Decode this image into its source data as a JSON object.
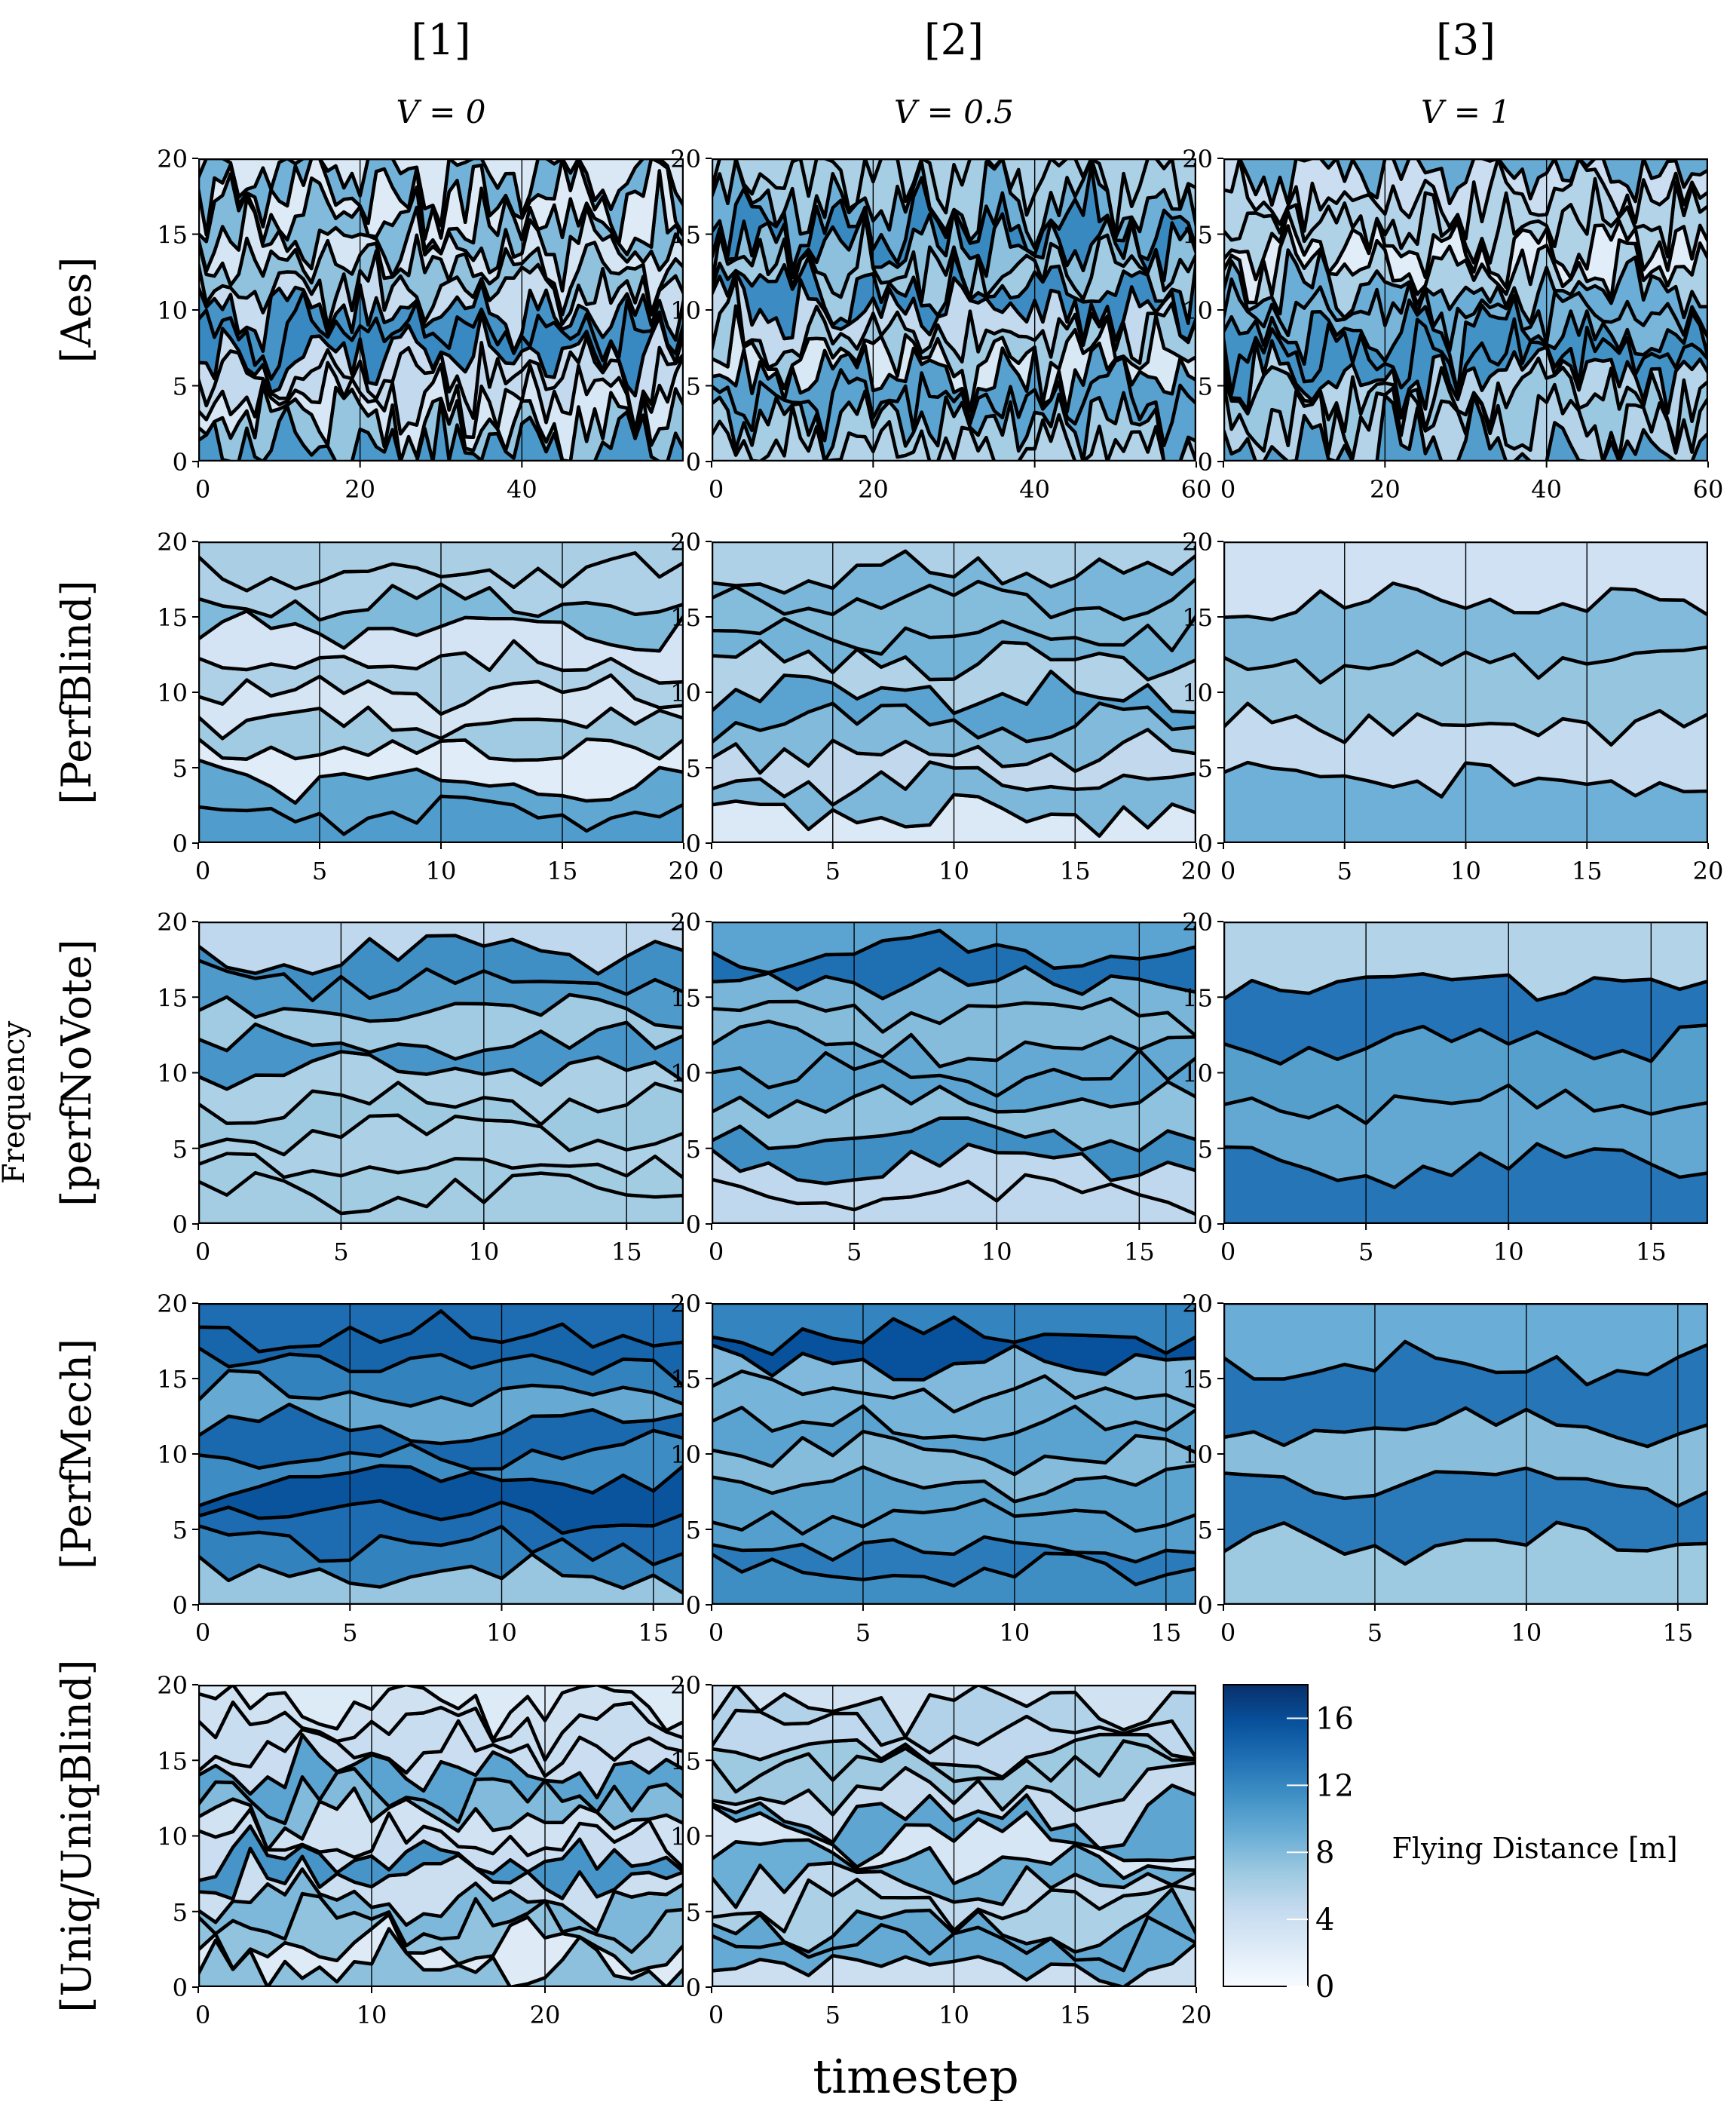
{
  "figure": {
    "column_headers": [
      "[1]",
      "[2]",
      "[3]"
    ],
    "column_subheaders": [
      "V = 0",
      "V = 0.5",
      "V = 1"
    ],
    "row_labels": [
      "[Aes]",
      "[PerfBlind]",
      "[perfNoVote]",
      "[PerfMech]",
      "[Uniq/UniqBlind]"
    ],
    "ylabel": "Frequency",
    "xlabel": "timestep"
  },
  "colorbar": {
    "label": "Flying Distance [m]",
    "ticks": [
      "16",
      "12",
      "8",
      "4",
      "0"
    ],
    "min": 0,
    "max": 18,
    "colors": [
      "#f7fbff",
      "#deebf7",
      "#c6dbef",
      "#9ecae1",
      "#6baed6",
      "#4292c6",
      "#2171b5",
      "#08519c",
      "#08306b"
    ]
  },
  "chart_data": [
    {
      "type": "area",
      "row": "[Aes]",
      "column": "[1]",
      "xlim": [
        0,
        60
      ],
      "ylim": [
        0,
        20
      ],
      "x_ticks": [
        "0",
        "20",
        "40"
      ],
      "y_ticks": [
        "0",
        "5",
        "10",
        "15",
        "20"
      ],
      "vlines": [
        20,
        40,
        60
      ]
    },
    {
      "type": "area",
      "row": "[Aes]",
      "column": "[2]",
      "xlim": [
        0,
        60
      ],
      "ylim": [
        0,
        20
      ],
      "x_ticks": [
        "0",
        "20",
        "40",
        "60"
      ],
      "y_ticks": [
        "0",
        "5",
        "10",
        "15",
        "20"
      ],
      "vlines": [
        20,
        40,
        60
      ]
    },
    {
      "type": "area",
      "row": "[Aes]",
      "column": "[3]",
      "xlim": [
        0,
        60
      ],
      "ylim": [
        0,
        20
      ],
      "x_ticks": [
        "0",
        "20",
        "40",
        "60"
      ],
      "y_ticks": [
        "0",
        "5",
        "10",
        "15",
        "20"
      ],
      "vlines": [
        20,
        40
      ]
    },
    {
      "type": "area",
      "row": "[PerfBlind]",
      "column": "[1]",
      "xlim": [
        0,
        20
      ],
      "ylim": [
        0,
        20
      ],
      "x_ticks": [
        "0",
        "5",
        "10",
        "15",
        "20"
      ],
      "y_ticks": [
        "0",
        "5",
        "10",
        "15",
        "20"
      ],
      "vlines": [
        5,
        10,
        15
      ]
    },
    {
      "type": "area",
      "row": "[PerfBlind]",
      "column": "[2]",
      "xlim": [
        0,
        20
      ],
      "ylim": [
        0,
        20
      ],
      "x_ticks": [
        "0",
        "5",
        "10",
        "15",
        "20"
      ],
      "y_ticks": [
        "0",
        "5",
        "10",
        "15",
        "20"
      ],
      "vlines": [
        5,
        10,
        15
      ]
    },
    {
      "type": "area",
      "row": "[PerfBlind]",
      "column": "[3]",
      "xlim": [
        0,
        20
      ],
      "ylim": [
        0,
        20
      ],
      "x_ticks": [
        "0",
        "5",
        "10",
        "15",
        "20"
      ],
      "y_ticks": [
        "0",
        "5",
        "10",
        "15",
        "20"
      ],
      "vlines": [
        5,
        10,
        15
      ]
    },
    {
      "type": "area",
      "row": "[perfNoVote]",
      "column": "[1]",
      "xlim": [
        0,
        17
      ],
      "ylim": [
        0,
        20
      ],
      "x_ticks": [
        "0",
        "5",
        "10",
        "15"
      ],
      "y_ticks": [
        "0",
        "5",
        "10",
        "15",
        "20"
      ],
      "vlines": [
        5,
        10,
        15
      ]
    },
    {
      "type": "area",
      "row": "[perfNoVote]",
      "column": "[2]",
      "xlim": [
        0,
        17
      ],
      "ylim": [
        0,
        20
      ],
      "x_ticks": [
        "0",
        "5",
        "10",
        "15"
      ],
      "y_ticks": [
        "0",
        "5",
        "10",
        "15",
        "20"
      ],
      "vlines": [
        5,
        10,
        15
      ]
    },
    {
      "type": "area",
      "row": "[perfNoVote]",
      "column": "[3]",
      "xlim": [
        0,
        17
      ],
      "ylim": [
        0,
        20
      ],
      "x_ticks": [
        "0",
        "5",
        "10",
        "15"
      ],
      "y_ticks": [
        "0",
        "5",
        "10",
        "15",
        "20"
      ],
      "vlines": [
        5,
        10,
        15
      ]
    },
    {
      "type": "area",
      "row": "[PerfMech]",
      "column": "[1]",
      "xlim": [
        0,
        16
      ],
      "ylim": [
        0,
        20
      ],
      "x_ticks": [
        "0",
        "5",
        "10",
        "15"
      ],
      "y_ticks": [
        "0",
        "5",
        "10",
        "15",
        "20"
      ],
      "vlines": [
        5,
        10,
        15
      ]
    },
    {
      "type": "area",
      "row": "[PerfMech]",
      "column": "[2]",
      "xlim": [
        0,
        16
      ],
      "ylim": [
        0,
        20
      ],
      "x_ticks": [
        "0",
        "5",
        "10",
        "15"
      ],
      "y_ticks": [
        "0",
        "5",
        "10",
        "15",
        "20"
      ],
      "vlines": [
        5,
        10,
        15
      ]
    },
    {
      "type": "area",
      "row": "[PerfMech]",
      "column": "[3]",
      "xlim": [
        0,
        16
      ],
      "ylim": [
        0,
        20
      ],
      "x_ticks": [
        "0",
        "5",
        "10",
        "15"
      ],
      "y_ticks": [
        "0",
        "5",
        "10",
        "15",
        "20"
      ],
      "vlines": [
        5,
        10,
        15
      ]
    },
    {
      "type": "area",
      "row": "[Uniq/UniqBlind]",
      "column": "[1]",
      "xlim": [
        0,
        28
      ],
      "ylim": [
        0,
        20
      ],
      "x_ticks": [
        "0",
        "10",
        "20"
      ],
      "y_ticks": [
        "0",
        "5",
        "10",
        "15",
        "20"
      ],
      "vlines": [
        10,
        20
      ]
    },
    {
      "type": "area",
      "row": "[Uniq/UniqBlind]",
      "column": "[2]",
      "xlim": [
        0,
        20
      ],
      "ylim": [
        0,
        20
      ],
      "x_ticks": [
        "0",
        "5",
        "10",
        "15",
        "20"
      ],
      "y_ticks": [
        "0",
        "5",
        "10",
        "15",
        "20"
      ],
      "vlines": [
        5,
        10,
        15
      ]
    }
  ]
}
